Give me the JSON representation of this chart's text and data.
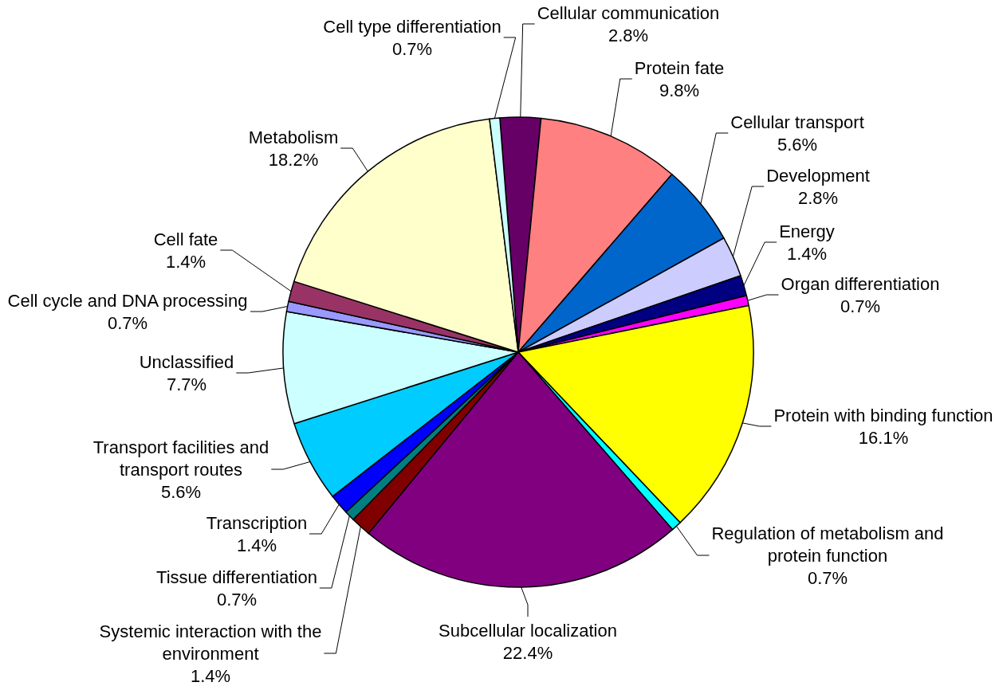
{
  "chart_data": {
    "type": "pie",
    "categories": [
      "Cellular communication",
      "Protein fate",
      "Cellular transport",
      "Development",
      "Energy",
      "Organ differentiation",
      "Protein with binding function",
      "Regulation of metabolism and protein function",
      "Subcellular localization",
      "Systemic interaction with the environment",
      "Tissue differentiation",
      "Transcription",
      "Transport facilities and transport routes",
      "Unclassified",
      "Cell cycle and DNA processing",
      "Cell fate",
      "Metabolism",
      "Cell type differentiation"
    ],
    "values": [
      2.8,
      9.8,
      5.6,
      2.8,
      1.4,
      0.7,
      16.1,
      0.7,
      22.4,
      1.4,
      0.7,
      1.4,
      5.6,
      7.7,
      0.7,
      1.4,
      18.2,
      0.7
    ],
    "colors": [
      "#660066",
      "#ff8080",
      "#0066cc",
      "#ccccff",
      "#000080",
      "#ff00ff",
      "#ffff00",
      "#00ffff",
      "#800080",
      "#800000",
      "#008080",
      "#0000ff",
      "#00ccff",
      "#ccffff",
      "#9999ff",
      "#993366",
      "#ffffcc",
      "#ccffff"
    ],
    "value_labels": [
      "2.8%",
      "9.8%",
      "5.6%",
      "2.8%",
      "1.4%",
      "0.7%",
      "16.1%",
      "0.7%",
      "22.4%",
      "1.4%",
      "0.7%",
      "1.4%",
      "5.6%",
      "7.7%",
      "0.7%",
      "1.4%",
      "18.2%",
      "0.7%"
    ]
  }
}
